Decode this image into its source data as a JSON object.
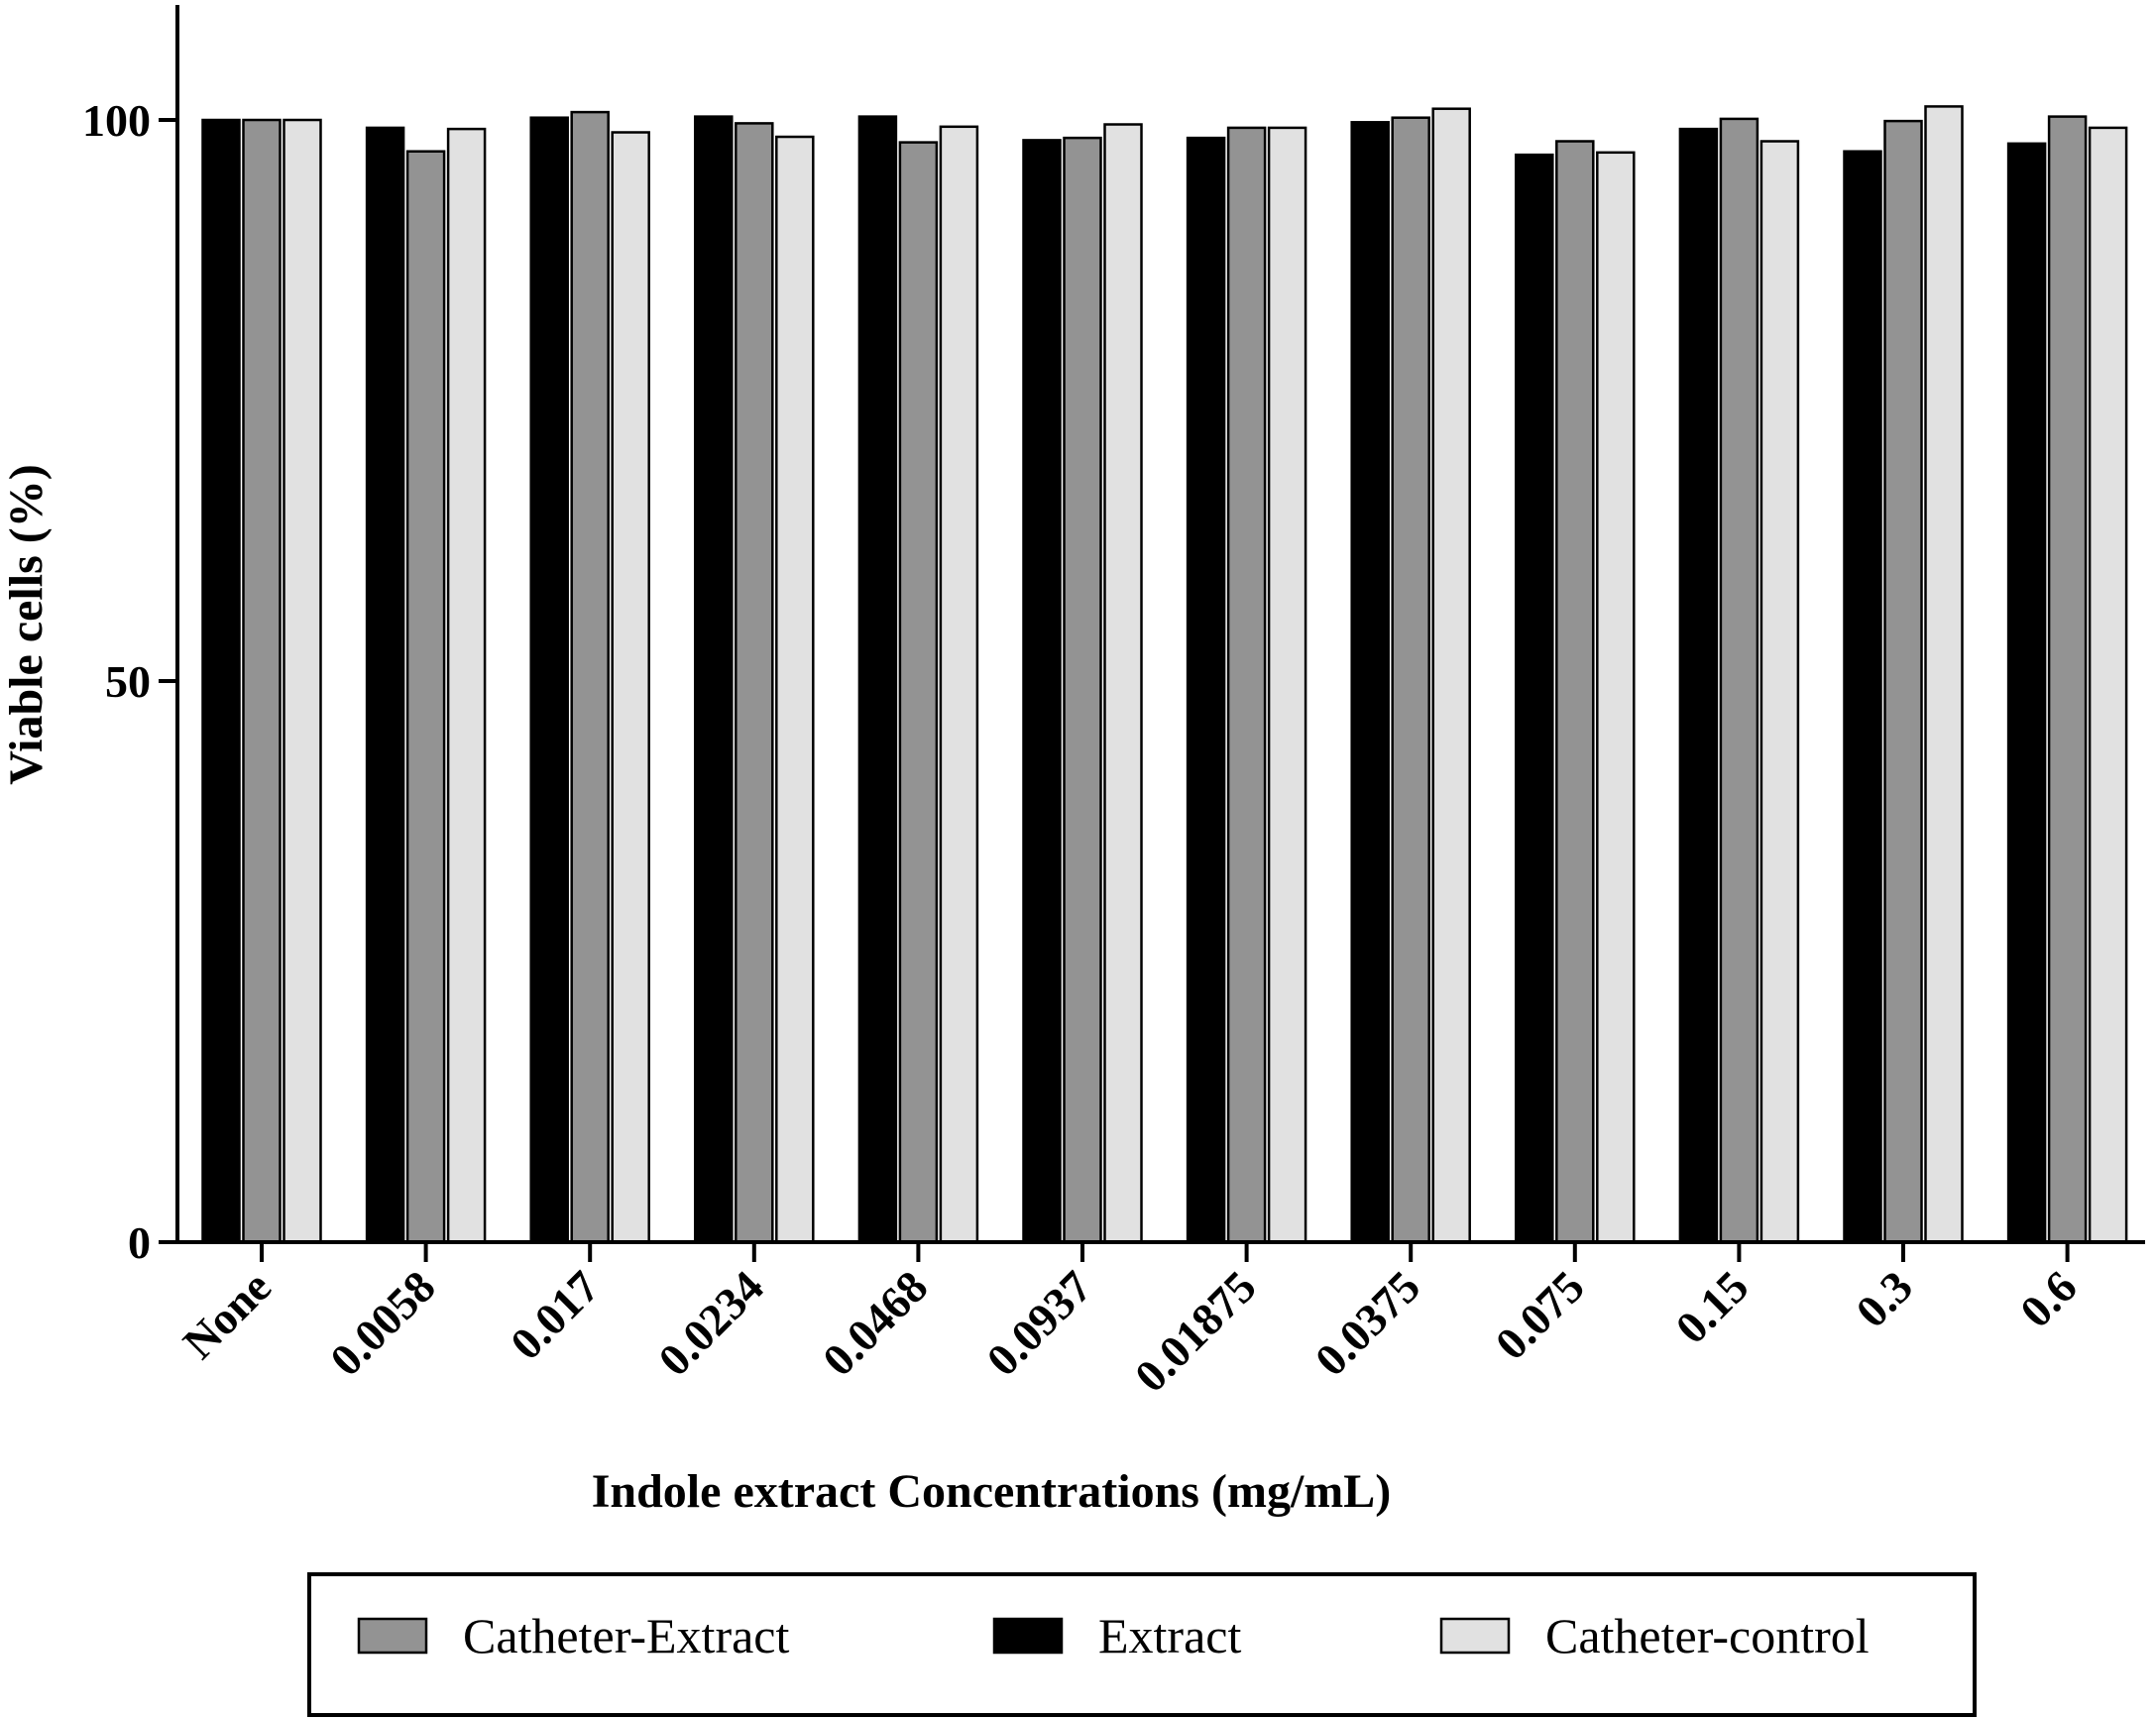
{
  "chart_data": {
    "type": "bar",
    "title": "",
    "xlabel": "Indole extract Concentrations (mg/mL)",
    "ylabel": "Viable cells (%)",
    "ylim": [
      0,
      112
    ],
    "yticks": [
      0,
      50,
      100
    ],
    "grid": false,
    "legend_position": "bottom",
    "categories": [
      "None",
      "0.0058",
      "0.017",
      "0.0234",
      "0.0468",
      "0.0937",
      "0.01875",
      "0.0375",
      "0.075",
      "0.15",
      "0.3",
      "0.6"
    ],
    "series": [
      {
        "name": "Extract",
        "color": "#000000",
        "values": [
          100,
          99.3,
          100.2,
          100.3,
          100.3,
          98.2,
          98.4,
          99.8,
          96.9,
          99.2,
          97.2,
          97.9
        ]
      },
      {
        "name": "Catheter-Extract",
        "color": "#939393",
        "values": [
          100,
          97.2,
          100.7,
          99.7,
          98.0,
          98.4,
          99.3,
          100.2,
          98.1,
          100.1,
          99.9,
          100.3
        ]
      },
      {
        "name": "Catheter-control",
        "color": "#e1e1e1",
        "values": [
          100,
          99.2,
          98.9,
          98.5,
          99.4,
          99.6,
          99.3,
          101.0,
          97.1,
          98.1,
          101.2,
          99.3
        ]
      }
    ],
    "legend_order": [
      "Catheter-Extract",
      "Extract",
      "Catheter-control"
    ]
  }
}
